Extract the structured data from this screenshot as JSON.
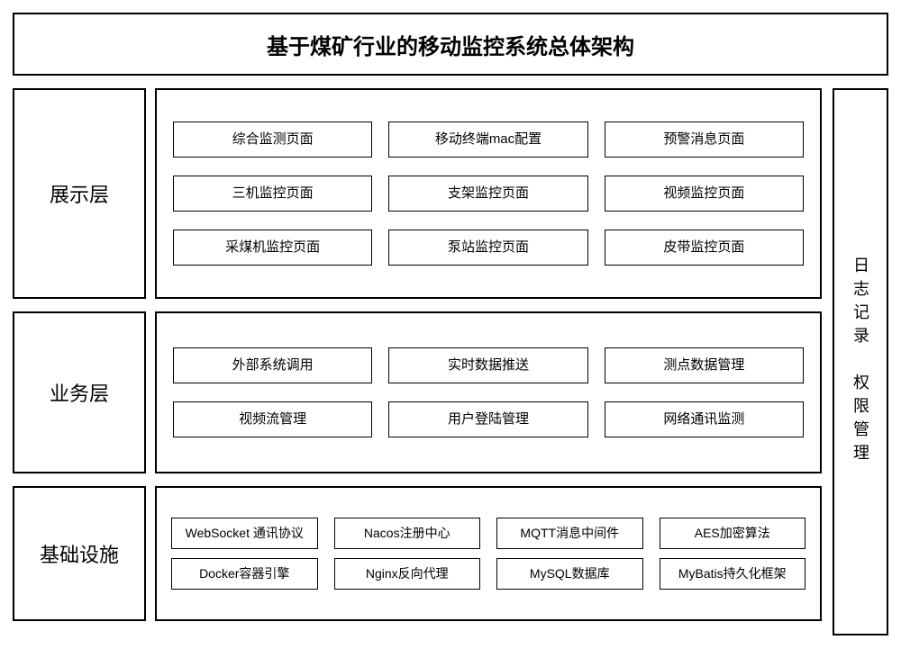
{
  "type": "architecture-diagram",
  "background_color": "#ffffff",
  "border_color": "#000000",
  "text_color": "#000000",
  "title_fontsize": 24,
  "layer_label_fontsize": 22,
  "cell_fontsize": 15,
  "infra_cell_fontsize": 14,
  "title": "基于煤矿行业的移动监控系统总体架构",
  "vstrip_text": "日志记录　权限管理",
  "layers": [
    {
      "label": "展示层",
      "rows": [
        [
          "综合监测页面",
          "移动终端mac配置",
          "预警消息页面"
        ],
        [
          "三机监控页面",
          "支架监控页面",
          "视频监控页面"
        ],
        [
          "采煤机监控页面",
          "泵站监控页面",
          "皮带监控页面"
        ]
      ]
    },
    {
      "label": "业务层",
      "rows": [
        [
          "外部系统调用",
          "实时数据推送",
          "测点数据管理"
        ],
        [
          "视频流管理",
          "用户登陆管理",
          "网络通讯监测"
        ]
      ]
    },
    {
      "label": "基础设施",
      "rows": [
        [
          "WebSocket\n通讯协议",
          "Nacos注册中心",
          "MQTT消息中间件",
          "AES加密算法"
        ],
        [
          "Docker容器引擎",
          "Nginx反向代理",
          "MySQL数据库",
          "MyBatis持久化框架"
        ]
      ]
    }
  ]
}
